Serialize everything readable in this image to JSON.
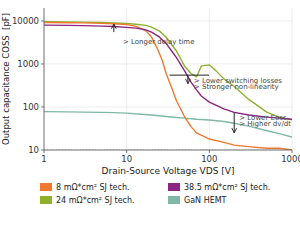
{
  "chart_data": {
    "type": "line",
    "xlabel": "Drain-Source Voltage VDS [V]",
    "ylabel": "Output capacitance COSS  [pF]",
    "log": true,
    "grid": true,
    "xlim": [
      1,
      1000
    ],
    "ylim": [
      10,
      20000
    ],
    "xticks": [
      1,
      10,
      100,
      1000
    ],
    "yticks": [
      10,
      100,
      1000,
      10000
    ],
    "series": [
      {
        "name": "8 mΩ*cm² SJ tech.",
        "color": "#F07830",
        "x": [
          1,
          2,
          3,
          5,
          7,
          10,
          13,
          17,
          20,
          23,
          27,
          30,
          35,
          40,
          50,
          60,
          70,
          100,
          150,
          200,
          300,
          500,
          700,
          1000
        ],
        "values": [
          9200,
          9100,
          9000,
          8800,
          8600,
          8200,
          7500,
          6000,
          4200,
          2500,
          1200,
          600,
          280,
          140,
          60,
          35,
          25,
          18,
          15,
          13,
          12,
          11,
          11,
          10
        ]
      },
      {
        "name": "24 mΩ*cm² SJ tech.",
        "color": "#8DB030",
        "x": [
          1,
          2,
          3,
          5,
          7,
          10,
          13,
          17,
          20,
          25,
          30,
          40,
          50,
          60,
          70,
          80,
          100,
          120,
          150,
          200,
          300,
          500,
          700,
          1000
        ],
        "values": [
          9600,
          9500,
          9400,
          9200,
          9000,
          8700,
          8400,
          7900,
          7200,
          5800,
          4200,
          2000,
          900,
          600,
          500,
          900,
          950,
          700,
          450,
          300,
          150,
          75,
          58,
          50
        ]
      },
      {
        "name": "38.5 mΩ*cm² SJ tech.",
        "color": "#8B2580",
        "x": [
          1,
          2,
          3,
          5,
          7,
          10,
          13,
          17,
          20,
          25,
          30,
          35,
          40,
          50,
          60,
          70,
          80,
          100,
          120,
          150,
          200,
          300,
          500,
          700,
          1000
        ],
        "values": [
          8000,
          7900,
          7800,
          7600,
          7400,
          7100,
          6800,
          6200,
          5500,
          4200,
          3000,
          2000,
          1400,
          700,
          380,
          250,
          180,
          130,
          110,
          90,
          75,
          65,
          58,
          55,
          52
        ]
      },
      {
        "name": "GaN HEMT",
        "color": "#80B8A8",
        "x": [
          1,
          2,
          3,
          5,
          7,
          10,
          15,
          20,
          30,
          40,
          50,
          70,
          100,
          150,
          200,
          300,
          500,
          700,
          1000
        ],
        "values": [
          78,
          77,
          76,
          75,
          74,
          72,
          68,
          65,
          60,
          57,
          55,
          52,
          50,
          46,
          42,
          36,
          28,
          24,
          20
        ]
      }
    ],
    "hlines": [
      10
    ],
    "arrows": [
      {
        "x": [
          7,
          7
        ],
        "y": [
          5500,
          8500
        ]
      },
      {
        "x": [
          55,
          55
        ],
        "y": [
          550,
          350
        ]
      },
      {
        "x": [
          200,
          200
        ],
        "y": [
          75,
          25
        ]
      }
    ],
    "segments": [
      {
        "x": [
          33,
          99
        ],
        "y": [
          550,
          550
        ]
      }
    ],
    "annotations": [
      {
        "text": "> Longer delay time",
        "x": 9,
        "y": 4200
      },
      {
        "text": "> Lower switching losses",
        "x": 65,
        "y": 520
      },
      {
        "text": "> Stronger non-linearity",
        "x": 65,
        "y": 370
      },
      {
        "text": "> Lower Eoss",
        "x": 230,
        "y": 72
      },
      {
        "text": "> Higher dv/dt",
        "x": 230,
        "y": 52
      }
    ]
  }
}
